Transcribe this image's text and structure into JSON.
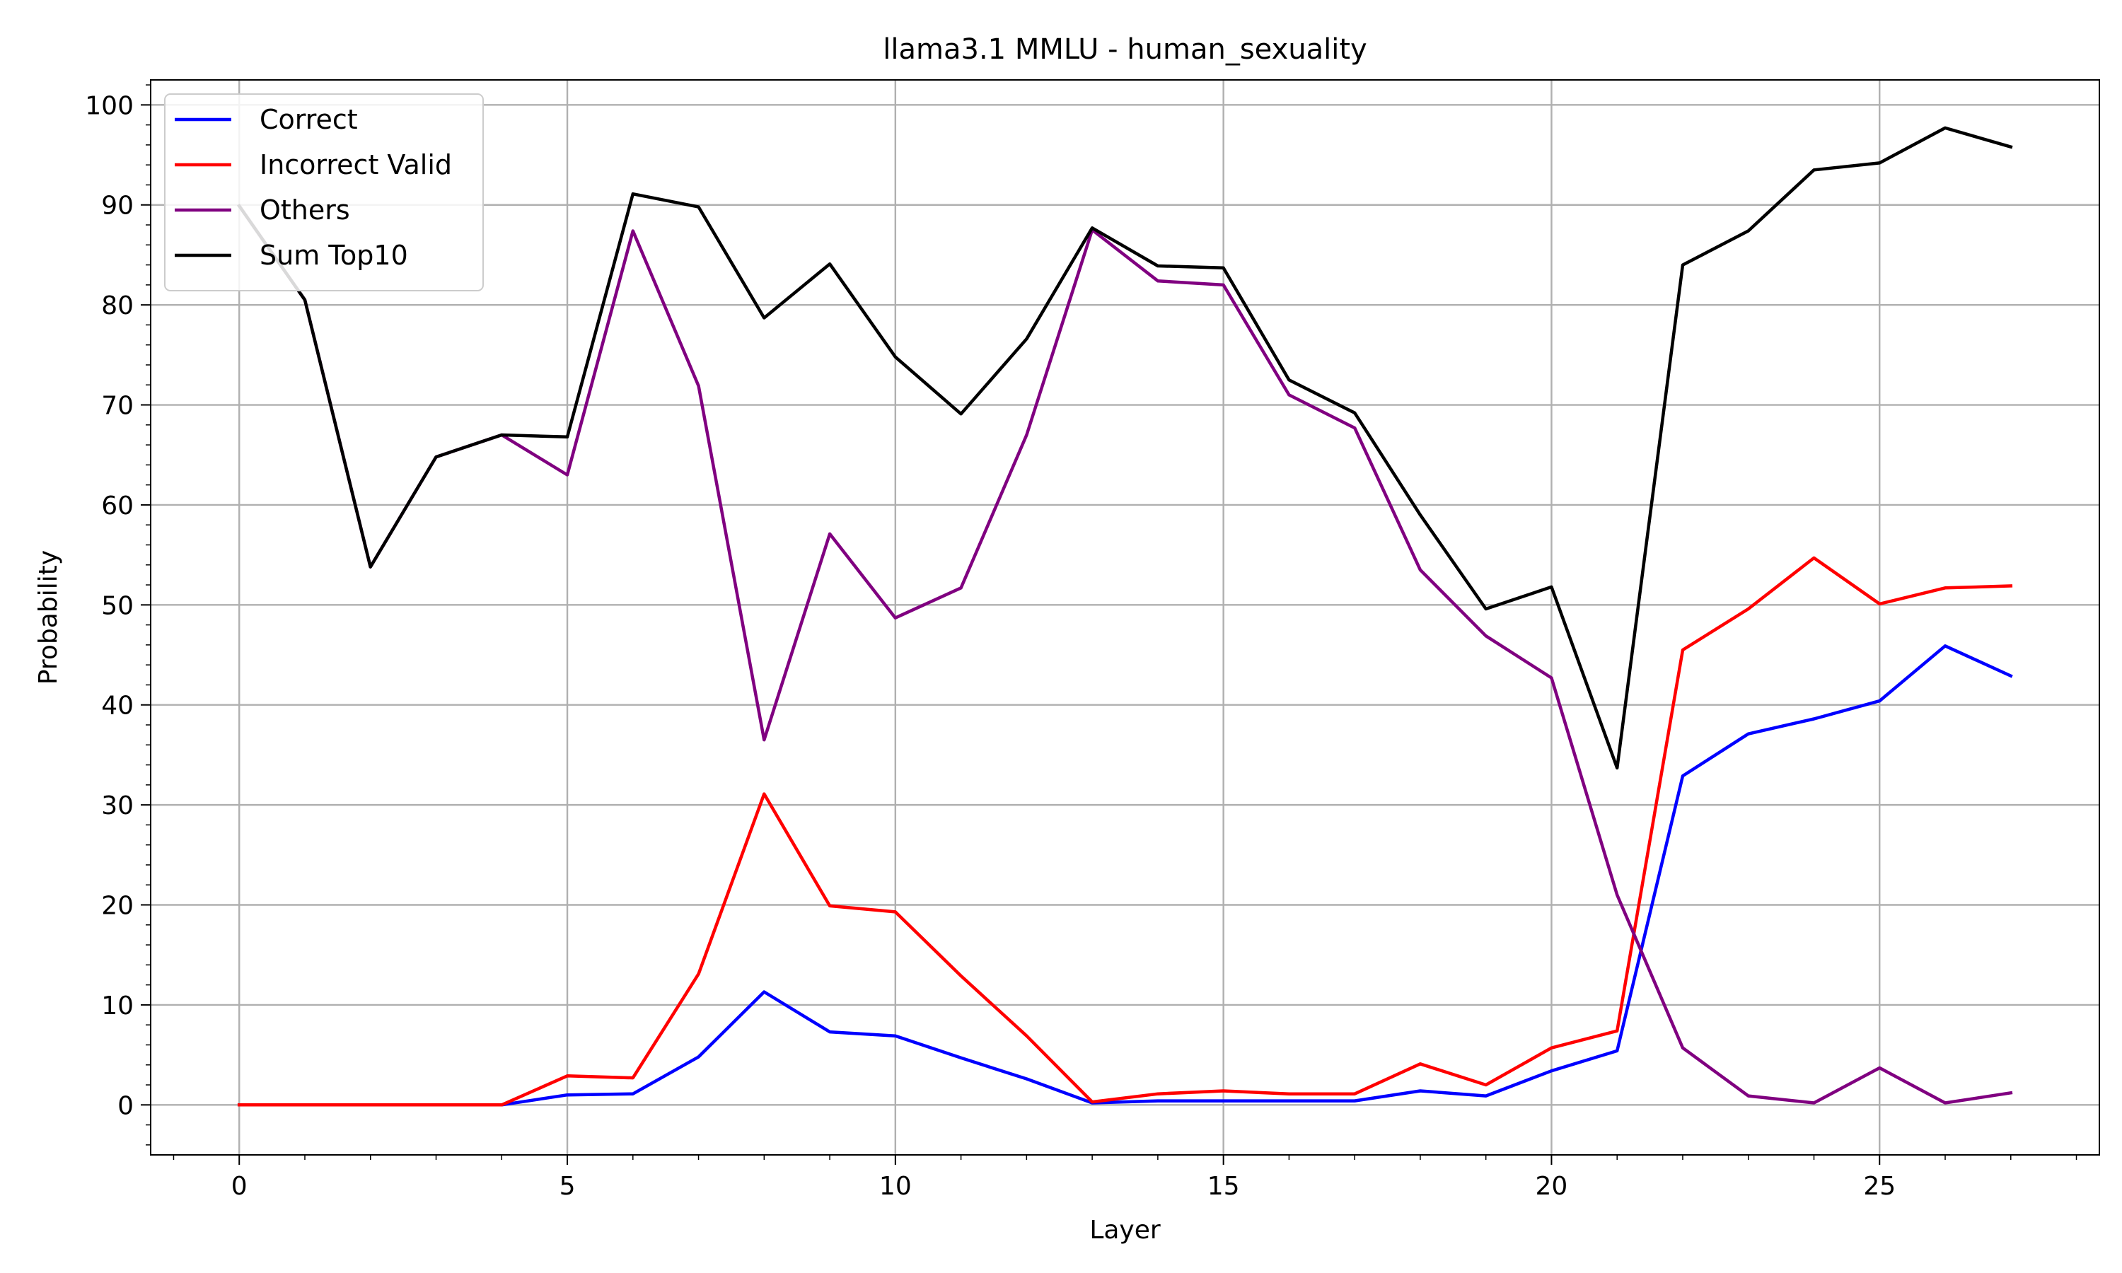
{
  "chart_data": {
    "type": "line",
    "title": "llama3.1 MMLU - human_sexuality",
    "xlabel": "Layer",
    "ylabel": "Probability",
    "xlim": [
      -1.35,
      28.35
    ],
    "ylim": [
      -5,
      102.5
    ],
    "xticks": [
      0,
      5,
      10,
      15,
      20,
      25
    ],
    "yticks": [
      0,
      10,
      20,
      30,
      40,
      50,
      60,
      70,
      80,
      90,
      100
    ],
    "grid": true,
    "legend_position": "top-left",
    "x": [
      0,
      1,
      2,
      3,
      4,
      5,
      6,
      7,
      8,
      9,
      10,
      11,
      12,
      13,
      14,
      15,
      16,
      17,
      18,
      19,
      20,
      21,
      22,
      23,
      24,
      25,
      26,
      27
    ],
    "series": [
      {
        "name": "Correct",
        "color": "#0000ff",
        "values": [
          0,
          0,
          0,
          0,
          0,
          1.0,
          1.1,
          4.8,
          11.3,
          7.3,
          6.9,
          4.7,
          2.6,
          0.2,
          0.4,
          0.4,
          0.4,
          0.4,
          1.4,
          0.9,
          3.4,
          5.4,
          32.9,
          37.1,
          38.6,
          40.4,
          45.9,
          42.9
        ]
      },
      {
        "name": "Incorrect Valid",
        "color": "#ff0000",
        "values": [
          0,
          0,
          0,
          0,
          0,
          2.9,
          2.7,
          13.1,
          31.1,
          19.9,
          19.3,
          12.9,
          6.9,
          0.3,
          1.1,
          1.4,
          1.1,
          1.1,
          4.1,
          2.0,
          5.7,
          7.4,
          45.5,
          49.6,
          54.7,
          50.1,
          51.7,
          51.9
        ]
      },
      {
        "name": "Others",
        "color": "#800080",
        "values": [
          89.9,
          80.5,
          53.8,
          64.8,
          67.0,
          63.0,
          87.4,
          71.9,
          36.5,
          57.1,
          48.7,
          51.7,
          67.0,
          87.5,
          82.4,
          82.0,
          71.0,
          67.7,
          53.5,
          46.9,
          42.7,
          21.0,
          5.7,
          0.9,
          0.2,
          3.7,
          0.2,
          1.2
        ]
      },
      {
        "name": "Sum Top10",
        "color": "#000000",
        "values": [
          89.9,
          80.5,
          53.8,
          64.8,
          67.0,
          66.8,
          91.1,
          89.8,
          78.7,
          84.1,
          74.8,
          69.1,
          76.6,
          87.7,
          83.9,
          83.7,
          72.5,
          69.2,
          59.0,
          49.6,
          51.8,
          33.7,
          84.0,
          87.4,
          93.5,
          94.2,
          97.7,
          95.8
        ]
      }
    ]
  }
}
